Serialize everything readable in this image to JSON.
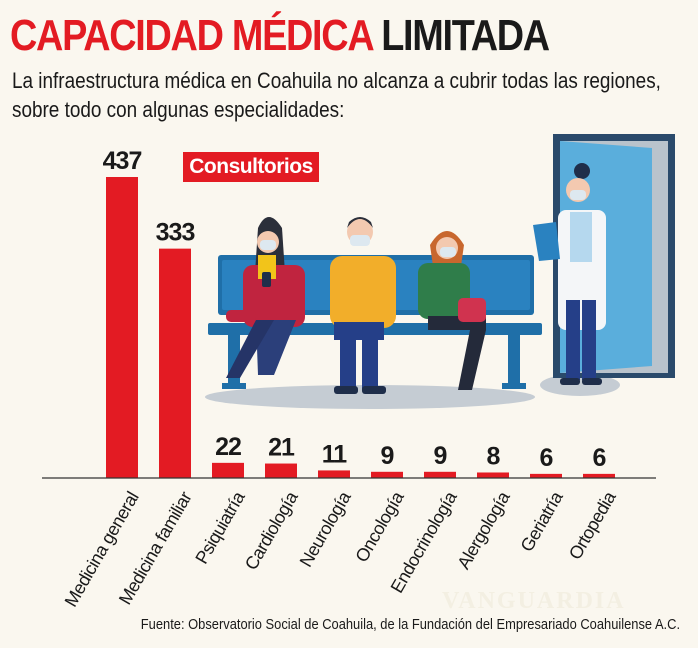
{
  "header": {
    "title_red": "CAPACIDAD MÉDICA",
    "title_dark": "LIMITADA",
    "subtitle": "La infraestructura médica en Coahuila no alcanza a cubrir todas las regiones, sobre todo con algunas especialidades:"
  },
  "legend": {
    "label": "Consultorios"
  },
  "colors": {
    "accent": "#e31b23",
    "bench": "#1f6fa8",
    "door": "#5aaedc",
    "background": "#faf7ef"
  },
  "chart_data": {
    "type": "bar",
    "title": "CAPACIDAD MÉDICA LIMITADA",
    "xlabel": "",
    "ylabel": "",
    "legend": [
      "Consultorios"
    ],
    "legend_position": "top-left",
    "grid": false,
    "ylim": [
      0,
      437
    ],
    "categories": [
      "Medicina general",
      "Medicina familiar",
      "Psiquiatría",
      "Cardiología",
      "Neurología",
      "Oncología",
      "Endocrinología",
      "Alergología",
      "Geriatría",
      "Ortopedia"
    ],
    "values": [
      437,
      333,
      22,
      21,
      11,
      9,
      9,
      8,
      6,
      6
    ]
  },
  "illustration": {
    "description_icons": [
      "waiting-bench-icon",
      "patient-woman-phone-icon",
      "patient-man-icon",
      "patient-woman-bag-icon",
      "doctor-icon",
      "door-icon"
    ]
  },
  "footer": {
    "source": "Fuente: Observatorio Social de Coahuila, de la Fundación del Empresariado Coahuilense A.C.",
    "watermark": "VANGUARDIA"
  }
}
